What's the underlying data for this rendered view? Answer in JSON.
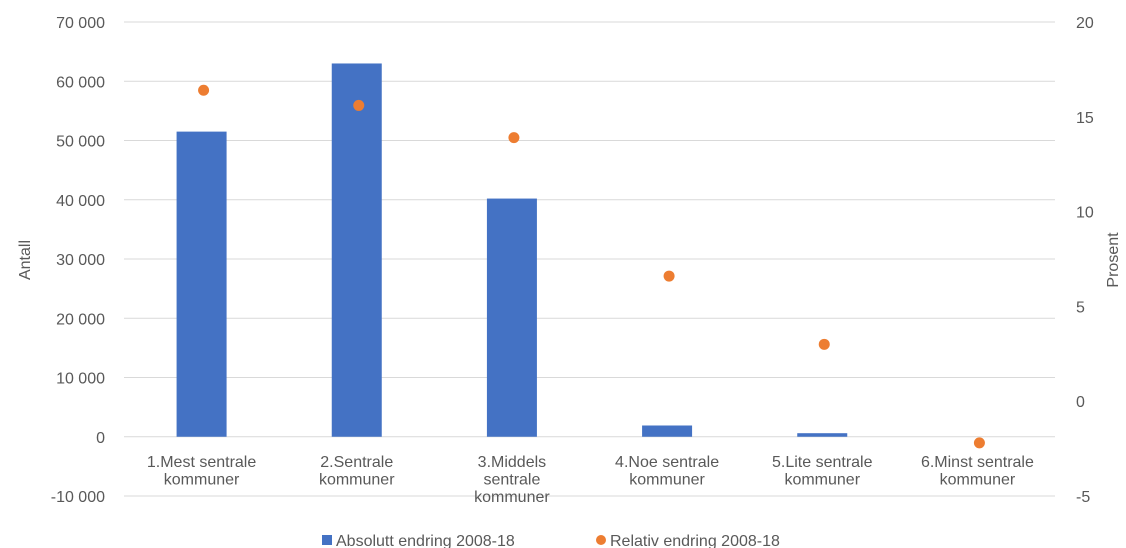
{
  "chart_data": {
    "type": "bar",
    "categories": [
      [
        "1.Mest sentrale",
        "kommuner"
      ],
      [
        "2.Sentrale",
        "kommuner"
      ],
      [
        "3.Middels",
        "sentrale",
        "kommuner"
      ],
      [
        "4.Noe sentrale",
        "kommuner"
      ],
      [
        "5.Lite sentrale",
        "kommuner"
      ],
      [
        "6.Minst sentrale",
        "kommuner"
      ]
    ],
    "series": [
      {
        "name": "Absolutt endring 2008-18",
        "type": "bar",
        "axis": "left",
        "color": "#4472C4",
        "values": [
          51500,
          63000,
          40200,
          1900,
          600,
          0
        ]
      },
      {
        "name": "Relativ endring 2008-18",
        "type": "scatter",
        "axis": "right",
        "color": "#ED7D31",
        "values": [
          16.4,
          15.6,
          13.9,
          6.6,
          3.0,
          -2.2
        ]
      }
    ],
    "ylabel": "Antall",
    "y2label": "Prosent",
    "ylim": [
      -10000,
      70000
    ],
    "y2lim": [
      -5,
      20
    ],
    "yticks": [
      "-10 000",
      "0",
      "10 000",
      "20 000",
      "30 000",
      "40 000",
      "50 000",
      "60 000",
      "70 000"
    ],
    "y2ticks": [
      "-5",
      "0",
      "5",
      "10",
      "15",
      "20"
    ],
    "grid": true,
    "legend": "bottom"
  }
}
